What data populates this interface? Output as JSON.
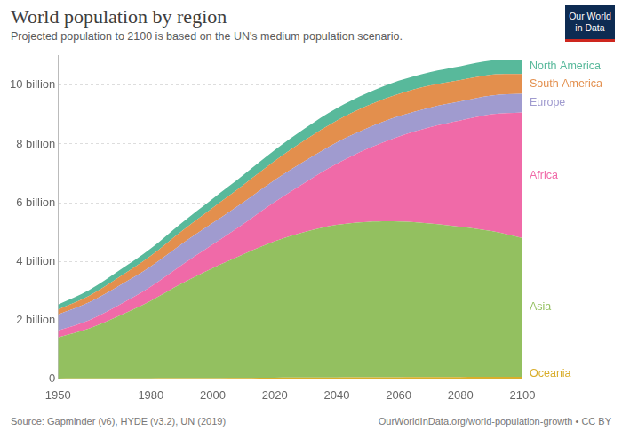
{
  "chart_data": {
    "type": "area",
    "title": "World population by region",
    "subtitle": "Projected population to 2100 is based on the UN's medium population scenario.",
    "source": "Source: Gapminder (v6), HYDE (v3.2), UN (2019)",
    "license": "OurWorldInData.org/world-population-growth • CC BY",
    "logo": [
      "Our World",
      "in Data"
    ],
    "x": [
      1950,
      1960,
      1970,
      1980,
      1990,
      2000,
      2010,
      2020,
      2030,
      2040,
      2050,
      2060,
      2070,
      2080,
      2090,
      2100
    ],
    "xlim": [
      1950,
      2100
    ],
    "xticks": [
      1950,
      1980,
      2000,
      2020,
      2040,
      2060,
      2080,
      2100
    ],
    "ylim": [
      0,
      11
    ],
    "yticks": [
      0,
      {
        "value": 2,
        "label": "2 billion"
      },
      {
        "value": 4,
        "label": "4 billion"
      },
      {
        "value": 6,
        "label": "6 billion"
      },
      {
        "value": 8,
        "label": "8 billion"
      },
      {
        "value": 10,
        "label": "10 billion"
      }
    ],
    "stacked": true,
    "grid": "y",
    "series": [
      {
        "name": "Oceania",
        "color": "#d9ae2c",
        "values": [
          0.013,
          0.016,
          0.02,
          0.023,
          0.027,
          0.031,
          0.037,
          0.043,
          0.048,
          0.053,
          0.057,
          0.061,
          0.065,
          0.068,
          0.071,
          0.075
        ]
      },
      {
        "name": "Asia",
        "color": "#93c060",
        "values": [
          1.4,
          1.7,
          2.14,
          2.64,
          3.22,
          3.74,
          4.21,
          4.64,
          4.96,
          5.19,
          5.29,
          5.3,
          5.23,
          5.11,
          4.96,
          4.72
        ]
      },
      {
        "name": "Africa",
        "color": "#f06aa8",
        "values": [
          0.23,
          0.28,
          0.37,
          0.48,
          0.63,
          0.81,
          1.04,
          1.34,
          1.69,
          2.08,
          2.49,
          2.89,
          3.27,
          3.62,
          3.98,
          4.28
        ]
      },
      {
        "name": "Europe",
        "color": "#a09bcf",
        "values": [
          0.55,
          0.61,
          0.66,
          0.69,
          0.72,
          0.73,
          0.74,
          0.75,
          0.74,
          0.73,
          0.71,
          0.69,
          0.67,
          0.65,
          0.64,
          0.63
        ]
      },
      {
        "name": "South America",
        "color": "#e38f4d",
        "values": [
          0.17,
          0.22,
          0.29,
          0.36,
          0.44,
          0.52,
          0.59,
          0.65,
          0.71,
          0.74,
          0.76,
          0.76,
          0.75,
          0.73,
          0.71,
          0.68
        ]
      },
      {
        "name": "North America",
        "color": "#58b99b",
        "values": [
          0.17,
          0.2,
          0.23,
          0.25,
          0.28,
          0.31,
          0.34,
          0.37,
          0.4,
          0.42,
          0.43,
          0.45,
          0.46,
          0.47,
          0.48,
          0.49
        ]
      }
    ]
  }
}
